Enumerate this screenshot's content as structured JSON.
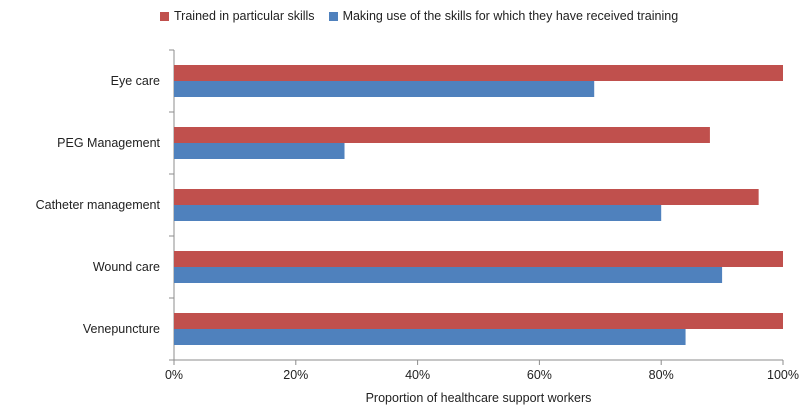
{
  "chart_data": {
    "type": "bar",
    "orientation": "horizontal",
    "title": "",
    "xlabel": "Proportion of healthcare support workers",
    "ylabel": "",
    "categories": [
      "Eye care",
      "PEG Management",
      "Catheter management",
      "Wound care",
      "Venepuncture"
    ],
    "series": [
      {
        "name": "Trained in particular skills",
        "color": "#c0504d",
        "values": [
          100,
          88,
          96,
          100,
          100
        ]
      },
      {
        "name": "Making use of the skills for which they have received training",
        "color": "#4f81bd",
        "values": [
          69,
          28,
          80,
          90,
          84
        ]
      }
    ],
    "xlim": [
      0,
      100
    ],
    "xticks": [
      "0%",
      "20%",
      "40%",
      "60%",
      "80%",
      "100%"
    ],
    "grid": false,
    "legend_position": "top"
  }
}
